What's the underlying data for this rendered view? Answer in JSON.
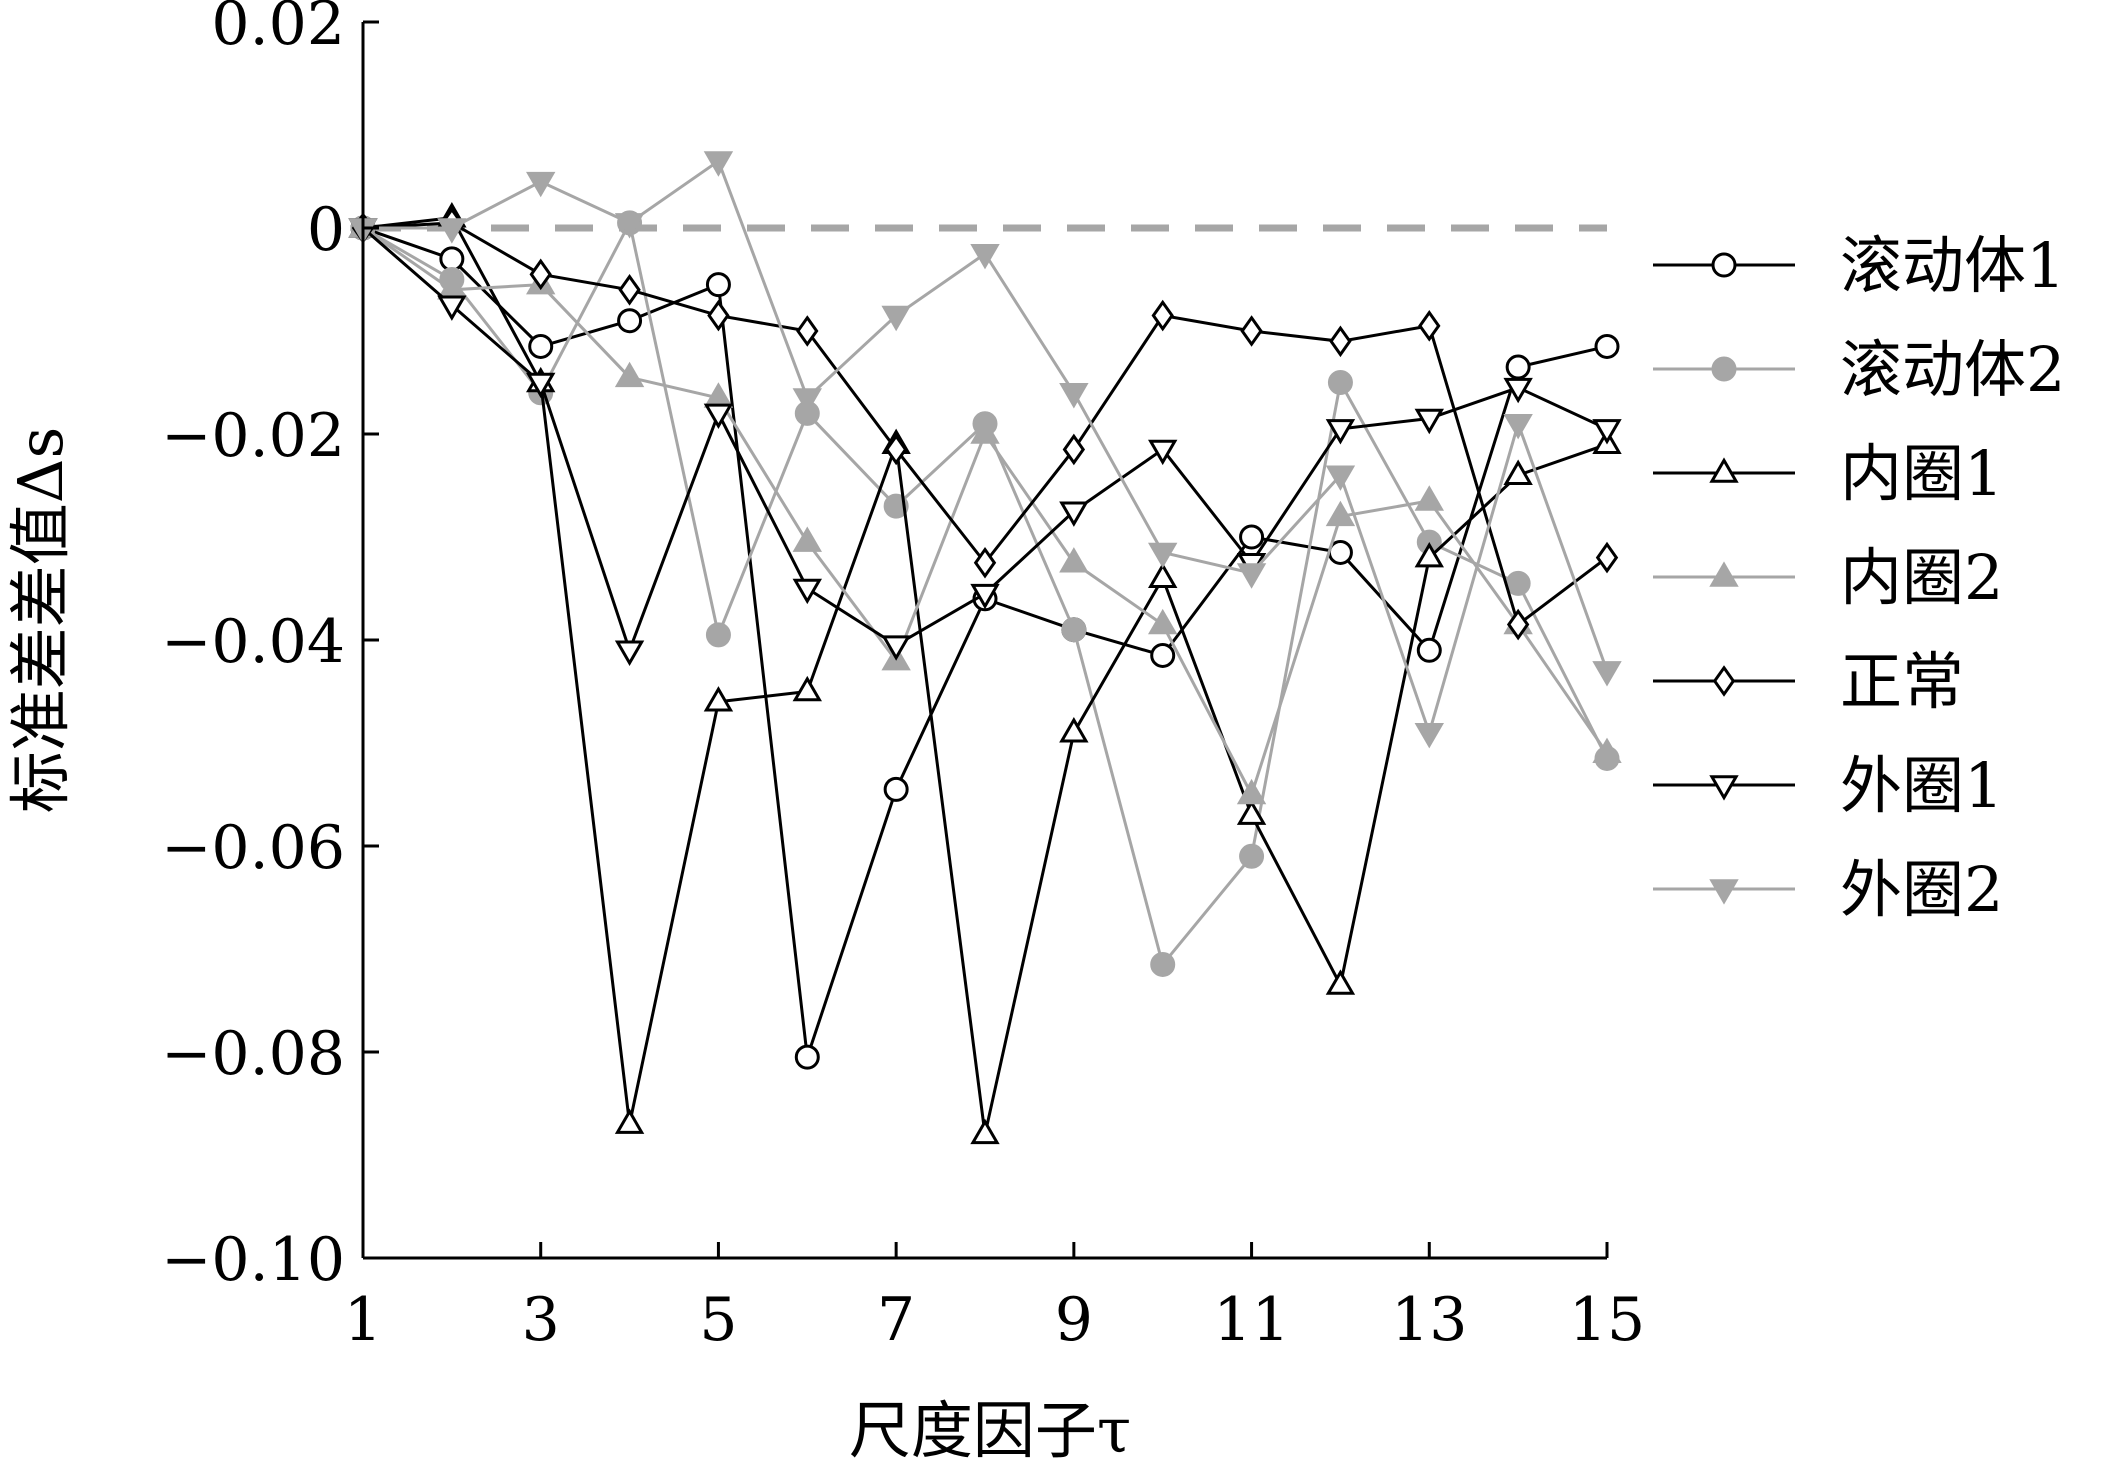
{
  "chart_data": {
    "type": "line",
    "xlabel": "尺度因子τ",
    "ylabel": "标准差差值Δs",
    "xlim": [
      1,
      15
    ],
    "ylim": [
      -0.1,
      0.02
    ],
    "xticks": [
      "1",
      "3",
      "5",
      "7",
      "9",
      "11",
      "13",
      "15"
    ],
    "yticks": [
      "0.02",
      "0",
      "−0.02",
      "−0.04",
      "−0.06",
      "−0.08",
      "−0.10"
    ],
    "legend_position": "right",
    "grid": false,
    "reference_line": {
      "y": 0,
      "style": "dashed",
      "color": "#a6a6a6"
    },
    "x": [
      1,
      2,
      3,
      4,
      5,
      6,
      7,
      8,
      9,
      10,
      11,
      12,
      13,
      14,
      15
    ],
    "series": [
      {
        "name": "滚动体1",
        "color": "#000000",
        "marker": "circle-open",
        "values": [
          0,
          -0.003,
          -0.0115,
          -0.009,
          -0.0055,
          -0.0805,
          -0.0545,
          -0.036,
          -0.039,
          -0.0415,
          -0.03,
          -0.0315,
          -0.041,
          -0.0135,
          -0.0115
        ]
      },
      {
        "name": "滚动体2",
        "color": "#a6a6a6",
        "marker": "circle-filled",
        "values": [
          0,
          -0.005,
          -0.016,
          0.0005,
          -0.0395,
          -0.018,
          -0.027,
          -0.019,
          -0.039,
          -0.0715,
          -0.061,
          -0.015,
          -0.0305,
          -0.0345,
          -0.0515
        ]
      },
      {
        "name": "内圈1",
        "color": "#000000",
        "marker": "triangle-up-open",
        "values": [
          0,
          0.001,
          -0.015,
          -0.087,
          -0.046,
          -0.045,
          -0.021,
          -0.088,
          -0.049,
          -0.034,
          -0.057,
          -0.0735,
          -0.032,
          -0.024,
          -0.021
        ]
      },
      {
        "name": "内圈2",
        "color": "#a6a6a6",
        "marker": "triangle-up-filled",
        "values": [
          0,
          -0.006,
          -0.0055,
          -0.0145,
          -0.0165,
          -0.0305,
          -0.042,
          -0.02,
          -0.0325,
          -0.0385,
          -0.055,
          -0.028,
          -0.0265,
          -0.0385,
          -0.051
        ]
      },
      {
        "name": "正常",
        "color": "#000000",
        "marker": "diamond-open",
        "values": [
          0,
          0.0005,
          -0.0045,
          -0.006,
          -0.0085,
          -0.01,
          -0.0215,
          -0.0325,
          -0.0215,
          -0.0085,
          -0.01,
          -0.011,
          -0.0095,
          -0.0385,
          -0.032
        ]
      },
      {
        "name": "外圈1",
        "color": "#000000",
        "marker": "triangle-down-open",
        "values": [
          0,
          -0.0075,
          -0.015,
          -0.041,
          -0.018,
          -0.035,
          -0.0405,
          -0.0355,
          -0.0275,
          -0.0215,
          -0.0325,
          -0.0195,
          -0.0185,
          -0.0155,
          -0.0195
        ]
      },
      {
        "name": "外圈2",
        "color": "#a6a6a6",
        "marker": "triangle-down-filled",
        "values": [
          0,
          0,
          0.0045,
          0.0005,
          0.0065,
          -0.0165,
          -0.0085,
          -0.0025,
          -0.016,
          -0.0315,
          -0.0335,
          -0.024,
          -0.049,
          -0.019,
          -0.043
        ]
      }
    ]
  }
}
